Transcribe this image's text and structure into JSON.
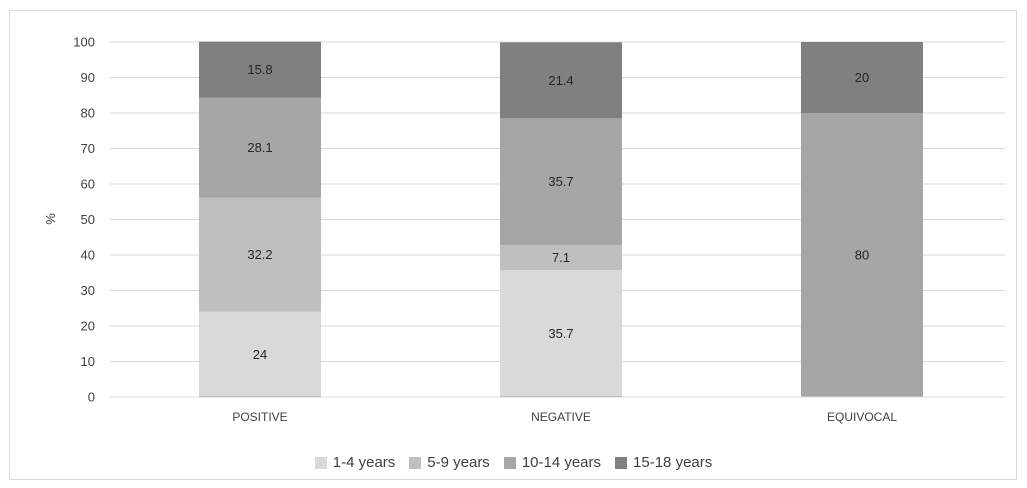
{
  "chart_data": {
    "type": "bar",
    "stacked": true,
    "categories": [
      "POSITIVE",
      "NEGATIVE",
      "EQUIVOCAL"
    ],
    "ylabel": "%",
    "ylim": [
      0,
      100
    ],
    "yticks": [
      "0",
      "10",
      "20",
      "30",
      "40",
      "50",
      "60",
      "70",
      "80",
      "90",
      "100"
    ],
    "grid": true,
    "legend_position": "bottom",
    "series": [
      {
        "name": "1-4 years",
        "values": [
          24,
          35.7,
          0
        ],
        "labels": [
          "24",
          "35.7",
          ""
        ],
        "color": "#d9d9d9"
      },
      {
        "name": "5-9 years",
        "values": [
          32.2,
          7.1,
          0
        ],
        "labels": [
          "32.2",
          "7.1",
          ""
        ],
        "color": "#bfbfbf"
      },
      {
        "name": "10-14 years",
        "values": [
          28.1,
          35.7,
          80
        ],
        "labels": [
          "28.1",
          "35.7",
          "80"
        ],
        "color": "#a6a6a6"
      },
      {
        "name": "15-18 years",
        "values": [
          15.8,
          21.4,
          20
        ],
        "labels": [
          "15.8",
          "21.4",
          "20"
        ],
        "color": "#808080"
      }
    ],
    "colors": {
      "grid": "#d9d9d9",
      "text": "#404040"
    }
  }
}
